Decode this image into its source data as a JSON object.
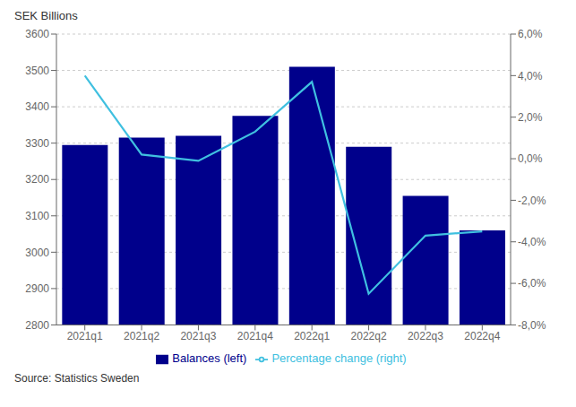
{
  "chart_data": {
    "type": "bar",
    "ylabel": "SEK Billions",
    "annotations": [
      "Source: Statistics Sweden"
    ],
    "categories": [
      "2021q1",
      "2021q2",
      "2021q3",
      "2021q4",
      "2022q1",
      "2022q2",
      "2022q3",
      "2022q4"
    ],
    "series": [
      {
        "name": "Balances (left)",
        "type": "bar",
        "color": "#00008B",
        "values": [
          3295,
          3315,
          3320,
          3375,
          3510,
          3290,
          3155,
          3060
        ]
      },
      {
        "name": "Percentage change (right)",
        "type": "line",
        "color": "#40C0E0",
        "marker": "none",
        "axis": "y2",
        "values": [
          4.0,
          0.2,
          -0.1,
          1.3,
          3.7,
          -6.5,
          -3.7,
          -3.5
        ]
      }
    ],
    "ylim": [
      2800,
      3600
    ],
    "yticks": [
      2800,
      2900,
      3000,
      3100,
      3200,
      3300,
      3400,
      3500,
      3600
    ],
    "y2lim": [
      -8.0,
      6.0
    ],
    "y2ticks": [
      {
        "value": -8.0,
        "label": "-8,0%"
      },
      {
        "value": -6.0,
        "label": "-6,0%"
      },
      {
        "value": -4.0,
        "label": "-4,0%"
      },
      {
        "value": -2.0,
        "label": "-2,0%"
      },
      {
        "value": 0.0,
        "label": "0,0%"
      },
      {
        "value": 2.0,
        "label": "2,0%"
      },
      {
        "value": 4.0,
        "label": "4,0%"
      },
      {
        "value": 6.0,
        "label": "6,0%"
      }
    ],
    "grid": true,
    "legend": "bottom"
  }
}
